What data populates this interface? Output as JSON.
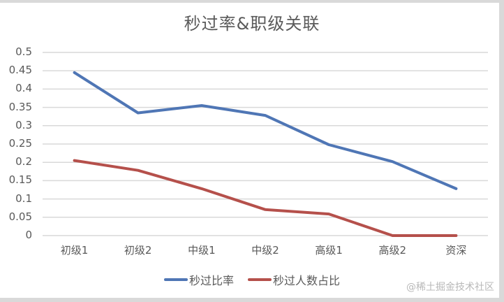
{
  "chart_data": {
    "type": "line",
    "title": "秒过率&职级关联",
    "xlabel": "",
    "ylabel": "",
    "categories": [
      "初级1",
      "初级2",
      "中级1",
      "中级2",
      "高级1",
      "高级2",
      "资深"
    ],
    "series": [
      {
        "name": "秒过比率",
        "color": "#4f76b5",
        "values": [
          0.445,
          0.335,
          0.355,
          0.328,
          0.248,
          0.202,
          0.128
        ]
      },
      {
        "name": "秒过人数占比",
        "color": "#b5504b",
        "values": [
          0.205,
          0.178,
          0.128,
          0.071,
          0.059,
          0,
          0
        ]
      }
    ],
    "ylim": [
      0,
      0.5
    ],
    "yticks": [
      "0",
      "0.05",
      "0.1",
      "0.15",
      "0.2",
      "0.25",
      "0.3",
      "0.35",
      "0.4",
      "0.45",
      "0.5"
    ],
    "grid": true,
    "legend_position": "bottom"
  },
  "watermark": "@稀土掘金技术社区"
}
